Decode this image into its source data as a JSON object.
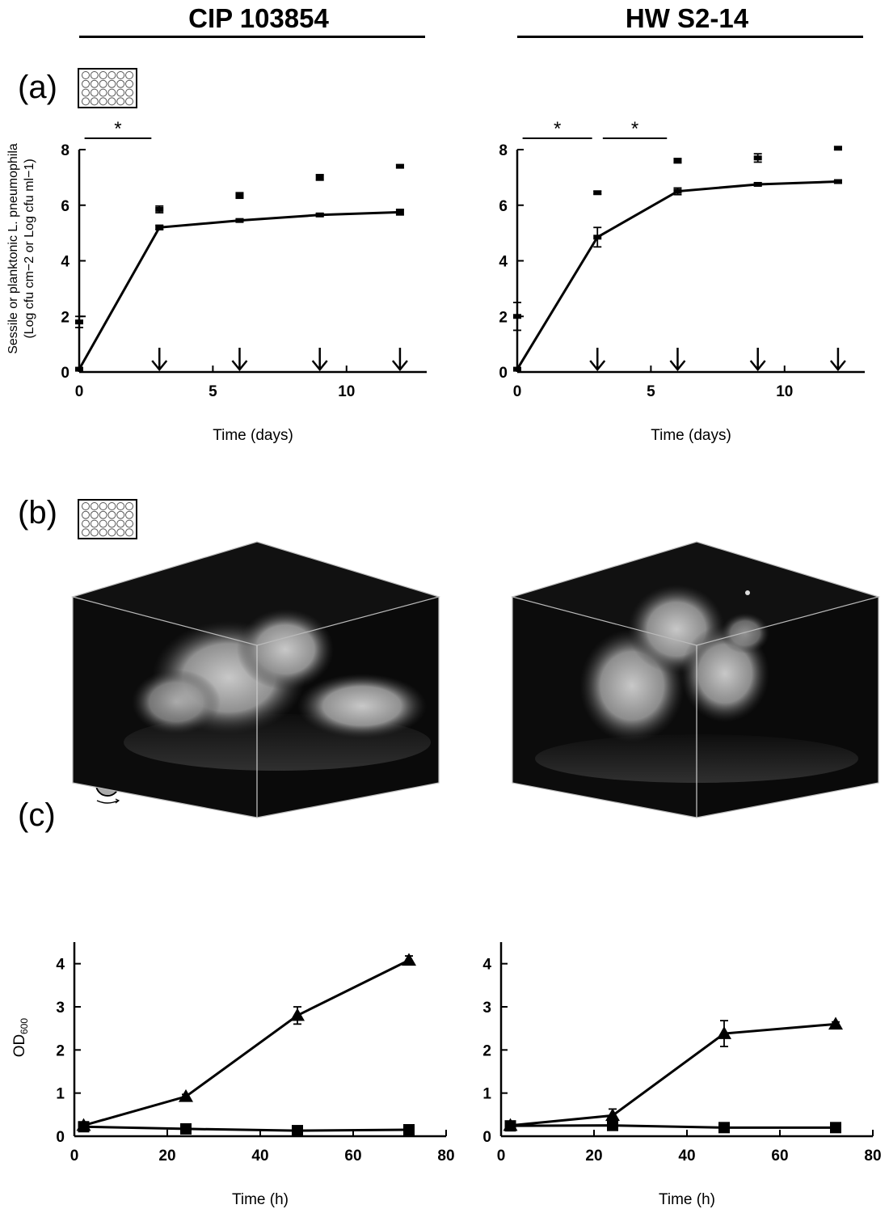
{
  "strains": [
    "CIP 103854",
    "HW S2-14"
  ],
  "panels": {
    "a": "(a)",
    "b": "(b)",
    "c": "(c)"
  },
  "significance_mark": "*",
  "chart_data": [
    {
      "type": "line",
      "panel": "a",
      "strain": "CIP 103854",
      "ylabel_line1": "Sessile or planktonic L. pneumophila",
      "ylabel_line2": "(Log cfu cm−2 or Log cfu ml−1)",
      "xlabel": "Time (days)",
      "xlim": [
        0,
        13
      ],
      "ylim": [
        0,
        8
      ],
      "xticks": [
        0,
        5,
        10
      ],
      "yticks": [
        0,
        2,
        4,
        6,
        8
      ],
      "series": [
        {
          "role": "sessile",
          "marker": "square",
          "line": true,
          "x": [
            0,
            3,
            6,
            9,
            12
          ],
          "y": [
            0.1,
            5.2,
            5.45,
            5.65,
            5.75
          ],
          "err": [
            0.05,
            0.08,
            0.05,
            0.05,
            0.1
          ]
        },
        {
          "role": "planktonic",
          "marker": "square",
          "line": false,
          "x": [
            0,
            3,
            6,
            9,
            12
          ],
          "y": [
            1.8,
            5.85,
            6.35,
            7.0,
            7.4
          ],
          "err": [
            0.2,
            0.12,
            0.1,
            0.1,
            0.05
          ]
        }
      ],
      "arrows_x": [
        3,
        6,
        9,
        12
      ],
      "significance": [
        [
          0.2,
          2.7
        ]
      ]
    },
    {
      "type": "line",
      "panel": "a",
      "strain": "HW S2-14",
      "xlabel": "Time (days)",
      "xlim": [
        0,
        13
      ],
      "ylim": [
        0,
        8
      ],
      "xticks": [
        0,
        5,
        10
      ],
      "yticks": [
        0,
        2,
        4,
        6,
        8
      ],
      "series": [
        {
          "role": "sessile",
          "marker": "square",
          "line": true,
          "x": [
            0,
            3,
            6,
            9,
            12
          ],
          "y": [
            0.1,
            4.85,
            6.5,
            6.75,
            6.85
          ],
          "err": [
            0.05,
            0.35,
            0.12,
            0.05,
            0.05
          ]
        },
        {
          "role": "planktonic",
          "marker": "square",
          "line": false,
          "x": [
            0,
            3,
            6,
            9,
            12
          ],
          "y": [
            2.0,
            6.45,
            7.6,
            7.7,
            8.05
          ],
          "err": [
            0.5,
            0.05,
            0.08,
            0.15,
            0.05
          ]
        }
      ],
      "arrows_x": [
        3,
        6,
        9,
        12
      ],
      "significance": [
        [
          0.2,
          2.8
        ],
        [
          3.2,
          5.6
        ]
      ]
    },
    {
      "type": "line",
      "panel": "c",
      "strain": "CIP 103854",
      "ylabel": "OD",
      "ylabel_sub": "600",
      "xlabel": "Time (h)",
      "xlim": [
        0,
        80
      ],
      "ylim": [
        0,
        4.5
      ],
      "xticks": [
        0,
        20,
        40,
        60,
        80
      ],
      "yticks": [
        0,
        1,
        2,
        3,
        4
      ],
      "series": [
        {
          "role": "triangle",
          "marker": "triangle",
          "line": true,
          "x": [
            2,
            24,
            48,
            72
          ],
          "y": [
            0.25,
            0.92,
            2.8,
            4.08
          ],
          "err": [
            0.05,
            0.05,
            0.2,
            0.1
          ]
        },
        {
          "role": "square",
          "marker": "square",
          "line": true,
          "x": [
            2,
            24,
            48,
            72
          ],
          "y": [
            0.22,
            0.17,
            0.13,
            0.15
          ],
          "err": [
            0.03,
            0.03,
            0.02,
            0.02
          ]
        }
      ]
    },
    {
      "type": "line",
      "panel": "c",
      "strain": "HW S2-14",
      "xlabel": "Time (h)",
      "xlim": [
        0,
        80
      ],
      "ylim": [
        0,
        4.5
      ],
      "xticks": [
        0,
        20,
        40,
        60,
        80
      ],
      "yticks": [
        0,
        1,
        2,
        3,
        4
      ],
      "series": [
        {
          "role": "triangle",
          "marker": "triangle",
          "line": true,
          "x": [
            2,
            24,
            48,
            72
          ],
          "y": [
            0.25,
            0.48,
            2.38,
            2.6
          ],
          "err": [
            0.05,
            0.15,
            0.3,
            0.05
          ]
        },
        {
          "role": "square",
          "marker": "square",
          "line": true,
          "x": [
            2,
            24,
            48,
            72
          ],
          "y": [
            0.24,
            0.25,
            0.2,
            0.2
          ],
          "err": [
            0.03,
            0.03,
            0.02,
            0.02
          ]
        }
      ]
    }
  ]
}
